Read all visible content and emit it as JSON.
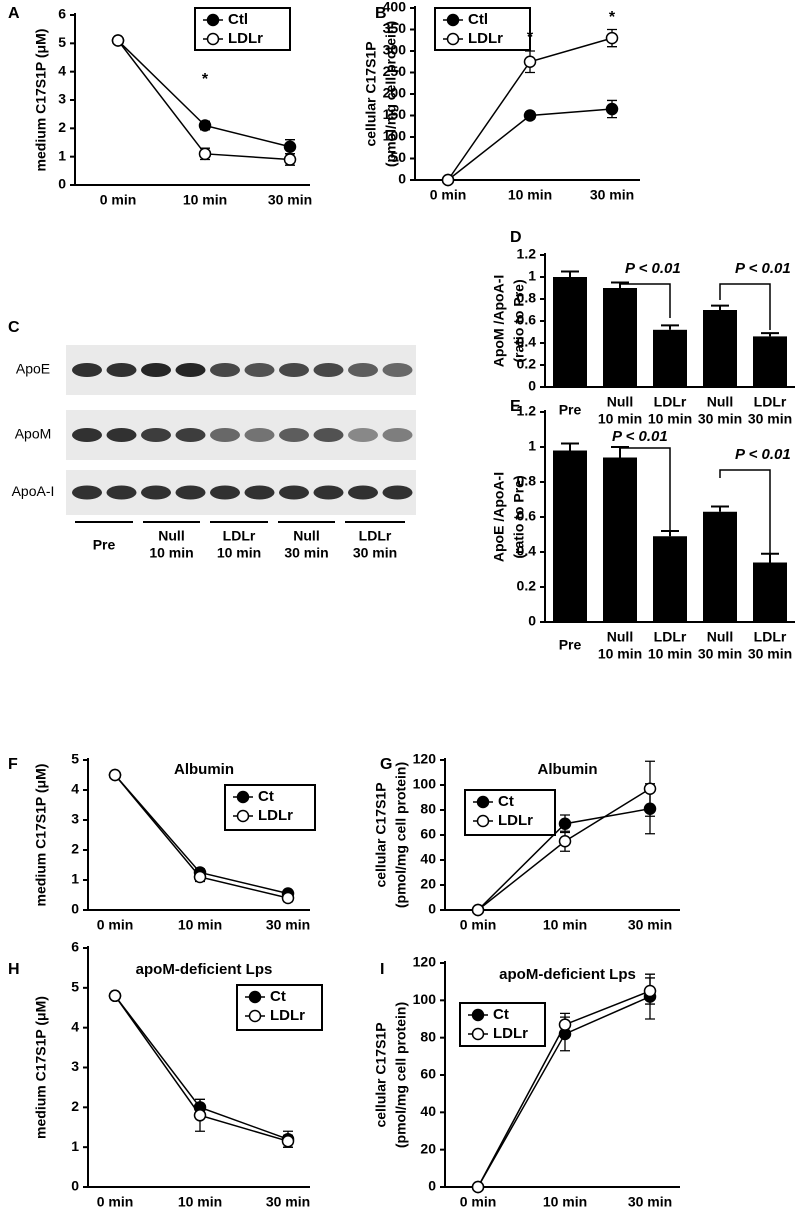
{
  "chart_data": [
    {
      "panel": "A",
      "type": "line",
      "ylabel": [
        "medium C17S1P (μM)"
      ],
      "categories": [
        "0 min",
        "10 min",
        "30 min"
      ],
      "series": [
        {
          "name": "Ctl",
          "color": "#000000",
          "marker": "filled",
          "values": [
            5.1,
            2.1,
            1.35
          ],
          "errors": [
            0,
            0.15,
            0.25
          ]
        },
        {
          "name": "LDLr",
          "color": "#000000",
          "marker": "open",
          "values": [
            5.1,
            1.1,
            0.9
          ],
          "errors": [
            0,
            0.2,
            0.2
          ]
        }
      ],
      "ylim": [
        0,
        6
      ],
      "yticks": [
        0,
        1,
        2,
        3,
        4,
        5,
        6
      ],
      "annotations": [
        {
          "text": "*"
        }
      ]
    },
    {
      "panel": "B",
      "type": "line",
      "ylabel": [
        "cellular C17S1P",
        "(pmol/mg cell protein)"
      ],
      "categories": [
        "0 min",
        "10 min",
        "30 min"
      ],
      "series": [
        {
          "name": "Ctl",
          "color": "#000000",
          "marker": "filled",
          "values": [
            0,
            150,
            165
          ],
          "errors": [
            0,
            8,
            20
          ]
        },
        {
          "name": "LDLr",
          "color": "#000000",
          "marker": "open",
          "values": [
            0,
            275,
            330
          ],
          "errors": [
            0,
            25,
            20
          ]
        }
      ],
      "ylim": [
        0,
        400
      ],
      "yticks": [
        0,
        50,
        100,
        150,
        200,
        250,
        300,
        350,
        400
      ],
      "annotations": [
        {
          "text": "*"
        },
        {
          "text": "*"
        }
      ]
    },
    {
      "panel": "D",
      "type": "bar",
      "ylabel": [
        "ApoM /ApoA-I",
        "(ratio to Pre)"
      ],
      "color": "#000000",
      "categories": [
        [
          "Pre"
        ],
        [
          "Null",
          "10 min"
        ],
        [
          "LDLr",
          "10 min"
        ],
        [
          "Null",
          "30 min"
        ],
        [
          "LDLr",
          "30 min"
        ]
      ],
      "values": [
        1.0,
        0.9,
        0.52,
        0.7,
        0.46
      ],
      "errors": [
        0.05,
        0.05,
        0.04,
        0.04,
        0.03
      ],
      "ylim": [
        0,
        1.2
      ],
      "yticks": [
        0,
        0.2,
        0.4,
        0.6,
        0.8,
        1,
        1.2
      ],
      "annotations": [
        {
          "text": "P < 0.01"
        },
        {
          "text": "P < 0.01"
        }
      ]
    },
    {
      "panel": "E",
      "type": "bar",
      "ylabel": [
        "ApoE /ApoA-I",
        "(ratio to Pre)"
      ],
      "color": "#000000",
      "categories": [
        [
          "Pre"
        ],
        [
          "Null",
          "10 min"
        ],
        [
          "LDLr",
          "10 min"
        ],
        [
          "Null",
          "30 min"
        ],
        [
          "LDLr",
          "30 min"
        ]
      ],
      "values": [
        0.98,
        0.94,
        0.49,
        0.63,
        0.34
      ],
      "errors": [
        0.04,
        0.06,
        0.03,
        0.03,
        0.05
      ],
      "ylim": [
        0,
        1.2
      ],
      "yticks": [
        0,
        0.2,
        0.4,
        0.6,
        0.8,
        1,
        1.2
      ],
      "annotations": [
        {
          "text": "P < 0.01"
        },
        {
          "text": "P < 0.01"
        }
      ]
    },
    {
      "panel": "F",
      "type": "line",
      "title": "Albumin",
      "ylabel": [
        "medium C17S1P (μM)"
      ],
      "categories": [
        "0 min",
        "10 min",
        "30 min"
      ],
      "series": [
        {
          "name": "Ct",
          "color": "#000000",
          "marker": "filled",
          "values": [
            4.5,
            1.25,
            0.55
          ],
          "errors": [
            0,
            0.12,
            0.1
          ]
        },
        {
          "name": "LDLr",
          "color": "#000000",
          "marker": "open",
          "values": [
            4.5,
            1.1,
            0.4
          ],
          "errors": [
            0,
            0.15,
            0.12
          ]
        }
      ],
      "ylim": [
        0,
        5
      ],
      "yticks": [
        0,
        1,
        2,
        3,
        4,
        5
      ]
    },
    {
      "panel": "G",
      "type": "line",
      "title": "Albumin",
      "ylabel": [
        "cellular C17S1P",
        "(pmol/mg cell protein)"
      ],
      "categories": [
        "0 min",
        "10 min",
        "30 min"
      ],
      "series": [
        {
          "name": "Ct",
          "color": "#000000",
          "marker": "filled",
          "values": [
            0,
            69,
            81
          ],
          "errors": [
            0,
            7,
            20
          ]
        },
        {
          "name": "LDLr",
          "color": "#000000",
          "marker": "open",
          "values": [
            0,
            55,
            97
          ],
          "errors": [
            0,
            8,
            22
          ]
        }
      ],
      "ylim": [
        0,
        120
      ],
      "yticks": [
        0,
        20,
        40,
        60,
        80,
        100,
        120
      ]
    },
    {
      "panel": "H",
      "type": "line",
      "title": "apoM-deficient Lps",
      "ylabel": [
        "medium C17S1P (μM)"
      ],
      "categories": [
        "0 min",
        "10 min",
        "30 min"
      ],
      "series": [
        {
          "name": "Ct",
          "color": "#000000",
          "marker": "filled",
          "values": [
            4.8,
            2.0,
            1.2
          ],
          "errors": [
            0,
            0.2,
            0.2
          ]
        },
        {
          "name": "LDLr",
          "color": "#000000",
          "marker": "open",
          "values": [
            4.8,
            1.8,
            1.15
          ],
          "errors": [
            0,
            0.4,
            0.15
          ]
        }
      ],
      "ylim": [
        0,
        6
      ],
      "yticks": [
        0,
        1,
        2,
        3,
        4,
        5,
        6
      ]
    },
    {
      "panel": "I",
      "type": "line",
      "title": "apoM-deficient Lps",
      "ylabel": [
        "cellular C17S1P",
        "(pmol/mg cell protein)"
      ],
      "categories": [
        "0 min",
        "10 min",
        "30 min"
      ],
      "series": [
        {
          "name": "Ct",
          "color": "#000000",
          "marker": "filled",
          "values": [
            0,
            82,
            102
          ],
          "errors": [
            0,
            9,
            12
          ]
        },
        {
          "name": "LDLr",
          "color": "#000000",
          "marker": "open",
          "values": [
            0,
            87,
            105
          ],
          "errors": [
            0,
            6,
            7
          ]
        }
      ],
      "ylim": [
        0,
        120
      ],
      "yticks": [
        0,
        20,
        40,
        60,
        80,
        100,
        120
      ]
    }
  ],
  "blot": {
    "panel": "C",
    "rows": [
      "ApoE",
      "ApoM",
      "ApoA-I"
    ],
    "groups": [
      [
        "Pre"
      ],
      [
        "Null",
        "10 min"
      ],
      [
        "LDLr",
        "10 min"
      ],
      [
        "Null",
        "30 min"
      ],
      [
        "LDLr",
        "30 min"
      ]
    ]
  }
}
